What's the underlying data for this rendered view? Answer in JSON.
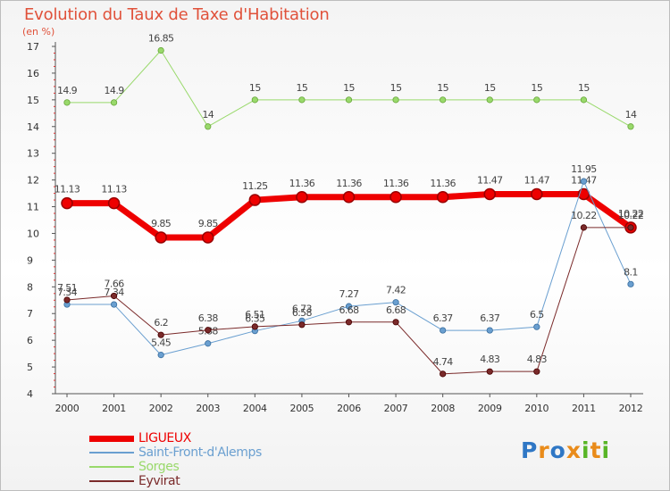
{
  "title": "Evolution du Taux de Taxe d'Habitation",
  "subtitle": "(en %)",
  "logo": {
    "text": "Proxiti",
    "colors": [
      "#2f77c5",
      "#e98b1a",
      "#2f77c5",
      "#e98b1a",
      "#58b526",
      "#e98b1a",
      "#58b526"
    ]
  },
  "chart_data": {
    "type": "line",
    "title": "Evolution du Taux de Taxe d'Habitation",
    "ylabel": "(en %)",
    "ylim": [
      4,
      17
    ],
    "yticks": [
      "4",
      "5",
      "6",
      "7",
      "8",
      "9",
      "10",
      "11",
      "12",
      "13",
      "14",
      "15",
      "16",
      "17"
    ],
    "x": [
      "2000",
      "2001",
      "2002",
      "2003",
      "2004",
      "2005",
      "2006",
      "2007",
      "2008",
      "2009",
      "2010",
      "2011",
      "2012"
    ],
    "legend_position": "bottom-left",
    "series": [
      {
        "name": "Sorges",
        "color": "#99d96b",
        "width": 1,
        "values": [
          14.9,
          14.9,
          16.85,
          14,
          15,
          15,
          15,
          15,
          15,
          15,
          15,
          15,
          14
        ],
        "labels": [
          "14.9",
          "14.9",
          "16.85",
          "14",
          "15",
          "15",
          "15",
          "15",
          "15",
          "15",
          "15",
          "15",
          "14"
        ]
      },
      {
        "name": "LIGUEUX",
        "color": "#ee0000",
        "width": 7,
        "values": [
          11.13,
          11.13,
          9.85,
          9.85,
          11.25,
          11.36,
          11.36,
          11.36,
          11.36,
          11.47,
          11.47,
          11.47,
          10.22
        ],
        "labels": [
          "11.13",
          "11.13",
          "9.85",
          "9.85",
          "11.25",
          "11.36",
          "11.36",
          "11.36",
          "11.36",
          "11.47",
          "11.47",
          "11.47",
          "10.22"
        ]
      },
      {
        "name": "Saint-Front-d'Alemps",
        "color": "#6a9fd0",
        "width": 1,
        "values": [
          7.34,
          7.34,
          5.45,
          5.88,
          6.35,
          6.73,
          7.27,
          7.42,
          6.37,
          6.37,
          6.5,
          11.95,
          8.1
        ],
        "labels": [
          "7.34",
          "7.34",
          "5.45",
          "5.88",
          "6.35",
          "6.73",
          "7.27",
          "7.42",
          "6.37",
          "6.37",
          "6.5",
          "11.95",
          "8.1"
        ]
      },
      {
        "name": "Eyvirat",
        "color": "#7a2a2a",
        "width": 1,
        "values": [
          7.51,
          7.66,
          6.2,
          6.38,
          6.51,
          6.58,
          6.68,
          6.68,
          4.74,
          4.83,
          4.83,
          10.22,
          10.22
        ],
        "labels": [
          "7.51",
          "7.66",
          "6.2",
          "6.38",
          "6.51",
          "6.58",
          "6.68",
          "6.68",
          "4.74",
          "4.83",
          "4.83",
          "10.22",
          "10.22"
        ]
      }
    ],
    "legend": [
      {
        "name": "LIGUEUX",
        "color": "#ee0000"
      },
      {
        "name": "Saint-Front-d'Alemps",
        "color": "#6a9fd0"
      },
      {
        "name": "Sorges",
        "color": "#99d96b"
      },
      {
        "name": "Eyvirat",
        "color": "#7a2a2a"
      }
    ]
  }
}
